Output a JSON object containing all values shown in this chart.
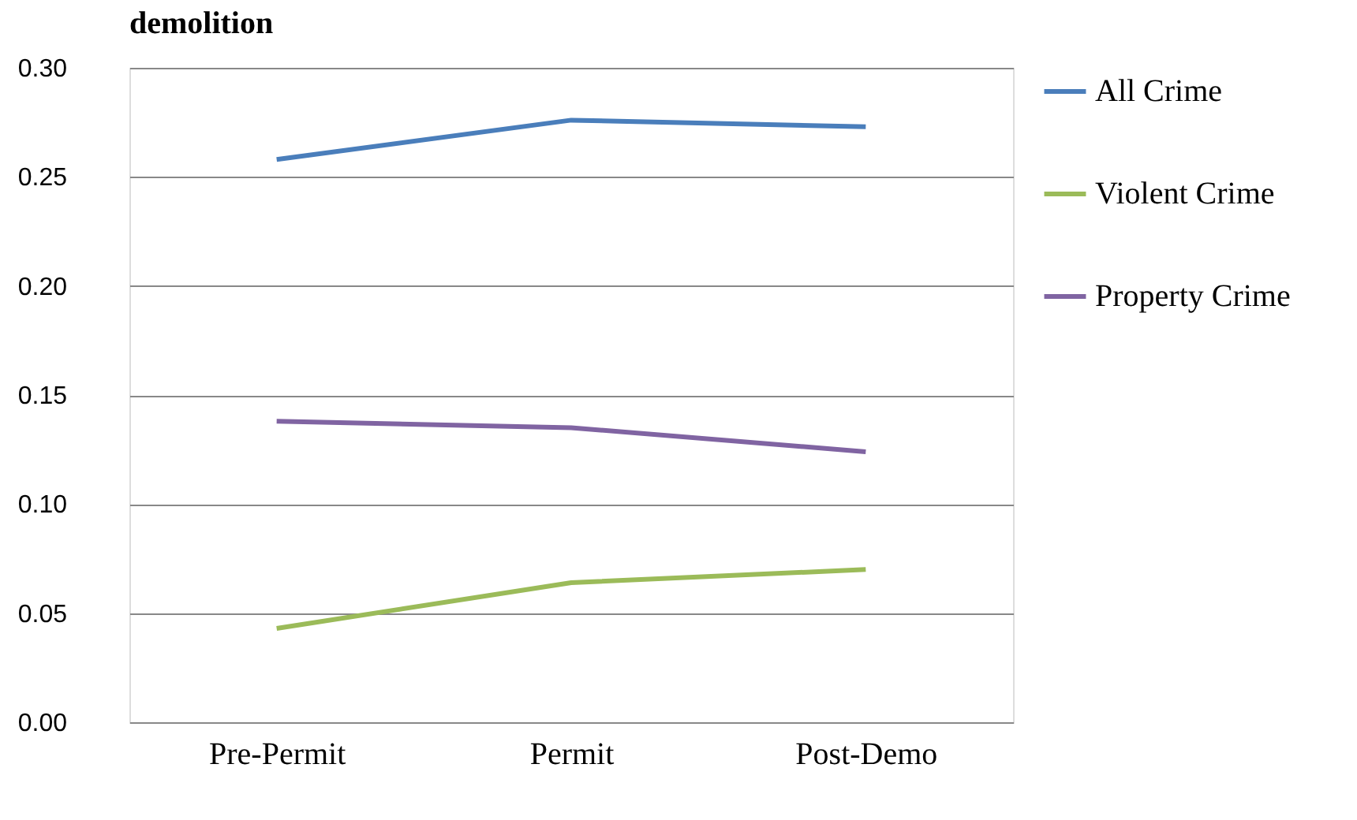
{
  "chart_data": {
    "type": "line",
    "title": "demolition",
    "categories": [
      "Pre-Permit",
      "Permit",
      "Post-Demo"
    ],
    "series": [
      {
        "name": "All  Crime",
        "color": "#4a7ebb",
        "values": [
          0.258,
          0.276,
          0.273
        ]
      },
      {
        "name": "Violent Crime",
        "color": "#9bbb59",
        "values": [
          0.043,
          0.064,
          0.07
        ]
      },
      {
        "name": "Property Crime",
        "color": "#8064a2",
        "values": [
          0.138,
          0.135,
          0.124
        ]
      }
    ],
    "ylim": [
      0,
      0.3
    ],
    "yticks": [
      {
        "value": 0,
        "label": "0.00"
      },
      {
        "value": 0.05,
        "label": "0.05"
      },
      {
        "value": 0.1,
        "label": "0.10"
      },
      {
        "value": 0.15,
        "label": "0.15"
      },
      {
        "value": 0.2,
        "label": "0.20"
      },
      {
        "value": 0.25,
        "label": "0.25"
      },
      {
        "value": 0.3,
        "label": "0.30"
      }
    ],
    "grid": "y",
    "legend": "right",
    "marker": "none",
    "line_style": "solid"
  }
}
